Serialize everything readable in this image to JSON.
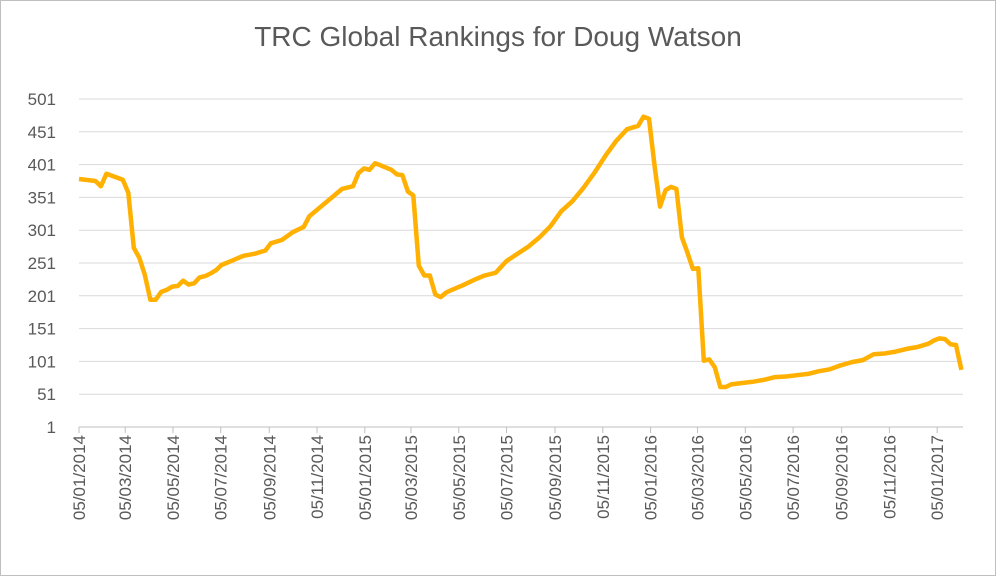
{
  "chart_data": {
    "type": "line",
    "title": "TRC Global Rankings for Doug Watson",
    "x": [
      "05/01/2014",
      "26/01/2014",
      "02/02/2014",
      "09/02/2014",
      "02/03/2014",
      "09/03/2014",
      "16/03/2014",
      "23/03/2014",
      "30/03/2014",
      "06/04/2014",
      "13/04/2014",
      "20/04/2014",
      "27/04/2014",
      "04/05/2014",
      "11/05/2014",
      "18/05/2014",
      "25/05/2014",
      "01/06/2014",
      "08/06/2014",
      "15/06/2014",
      "22/06/2014",
      "29/06/2014",
      "06/07/2014",
      "20/07/2014",
      "03/08/2014",
      "17/08/2014",
      "31/08/2014",
      "07/09/2014",
      "21/09/2014",
      "05/10/2014",
      "19/10/2014",
      "26/10/2014",
      "09/11/2014",
      "23/11/2014",
      "07/12/2014",
      "21/12/2014",
      "28/12/2014",
      "04/01/2015",
      "11/01/2015",
      "18/01/2015",
      "25/01/2015",
      "08/02/2015",
      "15/02/2015",
      "22/02/2015",
      "01/03/2015",
      "08/03/2015",
      "15/03/2015",
      "22/03/2015",
      "29/03/2015",
      "05/04/2015",
      "12/04/2015",
      "19/04/2015",
      "26/04/2015",
      "10/05/2015",
      "24/05/2015",
      "07/06/2015",
      "21/06/2015",
      "05/07/2015",
      "19/07/2015",
      "02/08/2015",
      "16/08/2015",
      "30/08/2015",
      "13/09/2015",
      "27/09/2015",
      "11/10/2015",
      "25/10/2015",
      "08/11/2015",
      "22/11/2015",
      "06/12/2015",
      "20/12/2015",
      "27/12/2015",
      "03/01/2016",
      "10/01/2016",
      "17/01/2016",
      "24/01/2016",
      "31/01/2016",
      "07/02/2016",
      "14/02/2016",
      "21/02/2016",
      "28/02/2016",
      "06/03/2016",
      "13/03/2016",
      "20/03/2016",
      "27/03/2016",
      "03/04/2016",
      "10/04/2016",
      "17/04/2016",
      "01/05/2016",
      "15/05/2016",
      "29/05/2016",
      "12/06/2016",
      "26/06/2016",
      "10/07/2016",
      "24/07/2016",
      "07/08/2016",
      "21/08/2016",
      "04/09/2016",
      "18/09/2016",
      "02/10/2016",
      "16/10/2016",
      "30/10/2016",
      "13/11/2016",
      "27/11/2016",
      "11/12/2016",
      "25/12/2016",
      "01/01/2017",
      "08/01/2017",
      "15/01/2017",
      "22/01/2017",
      "29/01/2017",
      "05/02/2017"
    ],
    "series": [
      {
        "name": "Ranking",
        "color": "#ffb000",
        "values": [
          379,
          376,
          368,
          387,
          378,
          358,
          274,
          259,
          233,
          195,
          195,
          207,
          210,
          215,
          216,
          224,
          218,
          220,
          229,
          231,
          235,
          240,
          248,
          255,
          262,
          265,
          270,
          281,
          286,
          298,
          306,
          322,
          336,
          350,
          364,
          368,
          388,
          395,
          393,
          403,
          400,
          393,
          386,
          385,
          360,
          354,
          247,
          232,
          232,
          203,
          199,
          206,
          210,
          217,
          225,
          232,
          236,
          254,
          265,
          276,
          290,
          307,
          330,
          345,
          365,
          388,
          414,
          437,
          455,
          460,
          474,
          471,
          400,
          337,
          362,
          367,
          364,
          290,
          267,
          242,
          243,
          102,
          104,
          92,
          62,
          62,
          66,
          68,
          70,
          73,
          77,
          78,
          80,
          82,
          86,
          89,
          95,
          100,
          103,
          112,
          113,
          116,
          120,
          123,
          128,
          133,
          136,
          135,
          127,
          126,
          88
        ]
      }
    ],
    "xlim": [
      "05/01/2014",
      "07/02/2017"
    ],
    "xticks": [
      "05/01/2014",
      "05/03/2014",
      "05/05/2014",
      "05/07/2014",
      "05/09/2014",
      "05/11/2014",
      "05/01/2015",
      "05/03/2015",
      "05/05/2015",
      "05/07/2015",
      "05/09/2015",
      "05/11/2015",
      "05/01/2016",
      "05/03/2016",
      "05/05/2016",
      "05/07/2016",
      "05/09/2016",
      "05/11/2016",
      "05/01/2017"
    ],
    "ylim": [
      1,
      501
    ],
    "yticks": [
      1,
      51,
      101,
      151,
      201,
      251,
      301,
      351,
      401,
      451,
      501
    ],
    "grid": true
  }
}
